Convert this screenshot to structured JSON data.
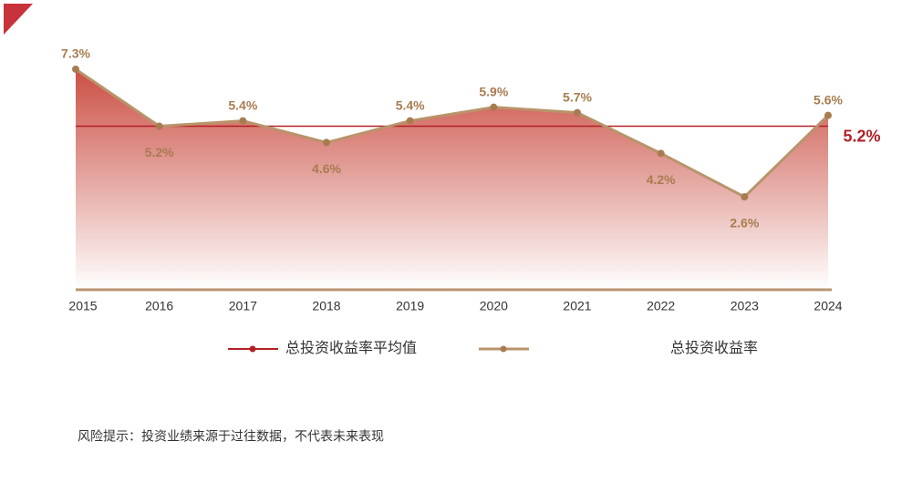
{
  "chart_data": {
    "type": "line",
    "categories": [
      "2015",
      "2016",
      "2017",
      "2018",
      "2019",
      "2020",
      "2021",
      "2022",
      "2023",
      "2024"
    ],
    "series": [
      {
        "name": "总投资收益率",
        "color": "#b8946a",
        "values": [
          7.3,
          5.2,
          5.4,
          4.6,
          5.4,
          5.9,
          5.7,
          4.2,
          2.6,
          5.6
        ],
        "value_labels": [
          "7.3%",
          "5.2%",
          "5.4%",
          "4.6%",
          "5.4%",
          "5.9%",
          "5.7%",
          "4.2%",
          "2.6%",
          "5.6%"
        ]
      }
    ],
    "average": {
      "name": "总投资收益率平均值",
      "value": 5.2,
      "label": "5.2%",
      "color": "#b22025"
    },
    "area_color": "#c8463a"
  },
  "footnote": "风险提示：投资业绩来源于过往数据，不代表未来表现"
}
